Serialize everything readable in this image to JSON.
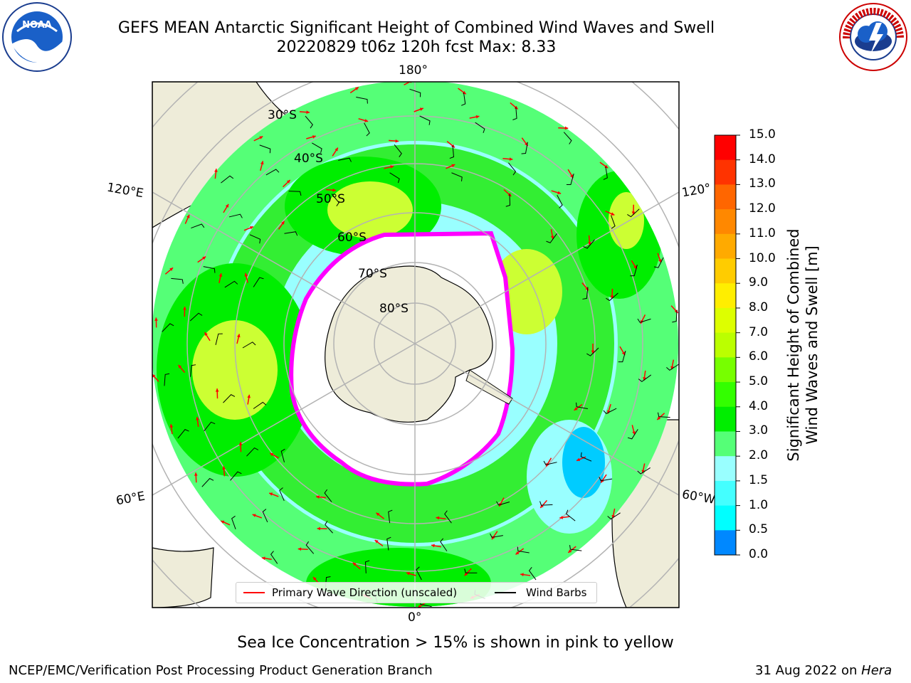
{
  "title": {
    "line1": "GEFS MEAN Antarctic Significant Height of Combined Wind Waves and Swell",
    "line2": "20220829 t06z 120h fcst   Max: 8.33"
  },
  "logos": {
    "left": "noaa-logo",
    "right": "nws-logo"
  },
  "map": {
    "projection": "south-polar-stereographic",
    "longitude_labels": [
      "180°",
      "120°E",
      "120°",
      "60°E",
      "60°W",
      "0°"
    ],
    "latitude_labels": [
      "30°S",
      "40°S",
      "50°S",
      "60°S",
      "70°S",
      "80°S"
    ],
    "colors": {
      "land": "#eeecd9",
      "coastline": "#000000",
      "gridline": "#b3b3b3",
      "wave_arrow": "#ff0000",
      "wind_barb": "#000000",
      "sea_ice": "#ff00ff"
    }
  },
  "colorbar": {
    "title_line1": "Significant Height of Combined",
    "title_line2": "Wind Waves and Swell [m]",
    "ticks": [
      "15.0",
      "14.0",
      "13.0",
      "12.0",
      "11.0",
      "10.0",
      "9.0",
      "8.0",
      "7.0",
      "6.0",
      "5.0",
      "4.0",
      "3.0",
      "2.0",
      "1.5",
      "1.0",
      "0.5",
      "0.0"
    ],
    "colors": [
      "#ff0000",
      "#ff3300",
      "#ff6600",
      "#ff8800",
      "#ffaa00",
      "#ffcc00",
      "#ffee00",
      "#ddff00",
      "#bbff00",
      "#77ff00",
      "#33ff00",
      "#00ee00",
      "#55ff77",
      "#99ffff",
      "#44ffff",
      "#00ffff",
      "#0088ff",
      "#0000ff"
    ]
  },
  "legend": {
    "wave_label": "Primary Wave Direction (unscaled)",
    "wind_label": "Wind Barbs"
  },
  "caption": "Sea Ice Concentration > 15% is shown in pink to yellow",
  "footer": {
    "left": "NCEP/EMC/Verification Post Processing Product Generation Branch",
    "right_date": "31 Aug 2022 on ",
    "right_machine": "Hera"
  }
}
